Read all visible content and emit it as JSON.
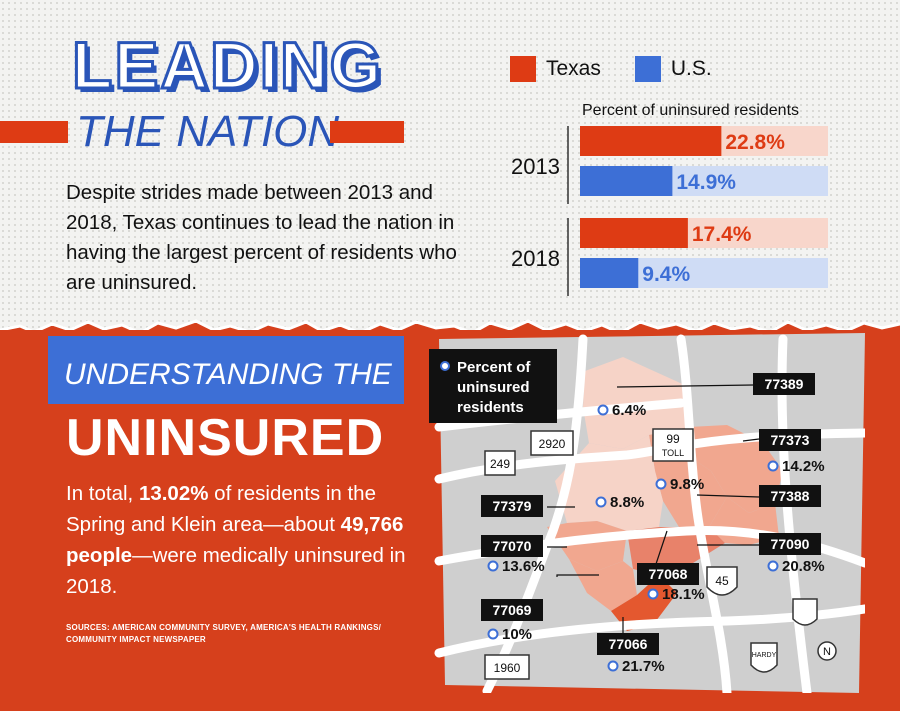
{
  "header": {
    "title_line1": "LEADING",
    "title_line2": "THE NATION",
    "intro": "Despite strides made between 2013 and 2018, Texas continues to lead the nation in having the largest percent of residents who are uninsured."
  },
  "colors": {
    "texas": "#de3b14",
    "texas_light": "#f8d6cb",
    "us": "#3d6fd6",
    "us_light": "#cfdcf5",
    "map_bg": "#cfcfcf",
    "region": "#f1a78f",
    "region_dark": "#e8826a",
    "region_light": "#f6d3c7"
  },
  "chart_data": {
    "type": "bar",
    "title": "Percent of uninsured residents",
    "categories": [
      "2013",
      "2018"
    ],
    "series": [
      {
        "name": "Texas",
        "values": [
          22.8,
          17.4
        ],
        "labels": [
          "22.8%",
          "17.4%"
        ]
      },
      {
        "name": "U.S.",
        "values": [
          14.9,
          9.4
        ],
        "labels": [
          "14.9%",
          "9.4%"
        ]
      }
    ],
    "xlim": [
      0,
      40
    ],
    "legend": "top",
    "orientation": "horizontal",
    "grid": false
  },
  "section2": {
    "kicker": "UNDERSTANDING THE",
    "title": "UNINSURED",
    "summary_pre": "In total, ",
    "summary_pct": "13.02%",
    "summary_mid": " of residents in the Spring and Klein area—about ",
    "summary_people": "49,766 people",
    "summary_post": "—were medically uninsured in 2018.",
    "sources": "SOURCES: AMERICAN COMMUNITY SURVEY, AMERICA'S HEALTH RANKINGS/ COMMUNITY IMPACT NEWSPAPER"
  },
  "map": {
    "legend_line1": "Percent of",
    "legend_line2": "uninsured",
    "legend_line3": "residents",
    "zips": [
      {
        "zip": "77389",
        "value": "6.4%"
      },
      {
        "zip": "77373",
        "value": "14.2%"
      },
      {
        "zip": "77388",
        "value": "9.8%"
      },
      {
        "zip": "77379",
        "value": "8.8%"
      },
      {
        "zip": "77070",
        "value": "13.6%"
      },
      {
        "zip": "77090",
        "value": "20.8%"
      },
      {
        "zip": "77068",
        "value": "18.1%"
      },
      {
        "zip": "77069",
        "value": "10%"
      },
      {
        "zip": "77066",
        "value": "21.7%"
      }
    ],
    "roads": {
      "r2920": "2920",
      "r249": "249",
      "r99": "99",
      "toll": "TOLL",
      "r45": "45",
      "r1960": "1960",
      "hardy": "HARDY"
    },
    "north": "N"
  }
}
